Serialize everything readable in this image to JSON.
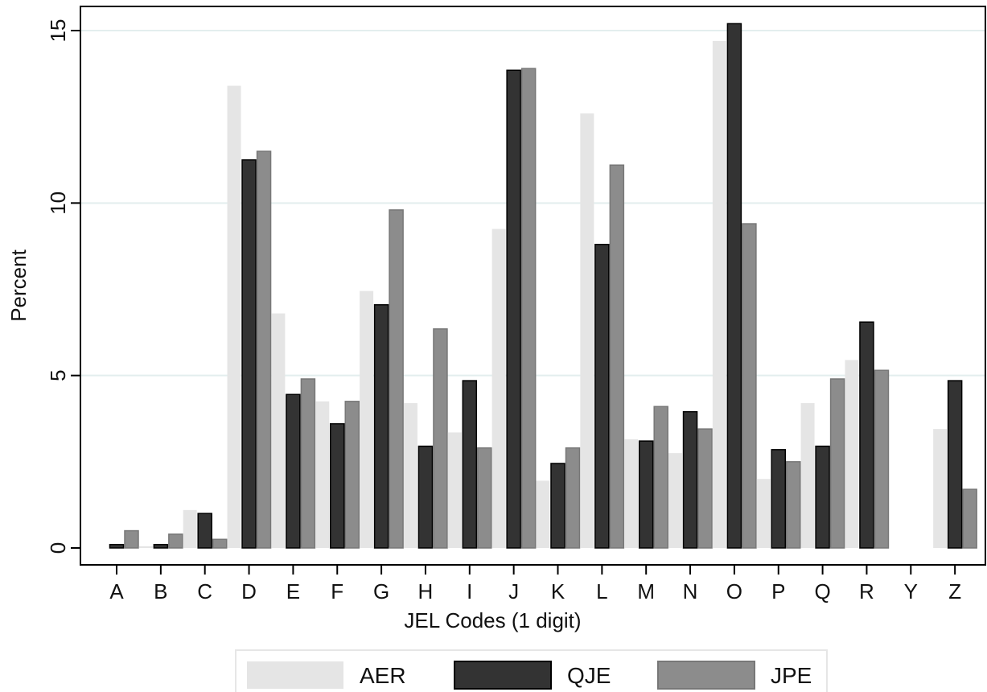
{
  "chart_data": {
    "type": "bar",
    "xlabel": "JEL Codes (1 digit)",
    "ylabel": "Percent",
    "ylim": [
      0,
      15.8
    ],
    "yticks": [
      0,
      5,
      10,
      15
    ],
    "grid": true,
    "legend_position": "bottom",
    "categories": [
      "A",
      "B",
      "C",
      "D",
      "E",
      "F",
      "G",
      "H",
      "I",
      "J",
      "K",
      "L",
      "M",
      "N",
      "O",
      "P",
      "Q",
      "R",
      "Y",
      "Z"
    ],
    "series": [
      {
        "name": "AER",
        "color": "#e5e5e5",
        "stroke": "none",
        "values": [
          0.0,
          0.05,
          1.1,
          13.4,
          6.8,
          4.25,
          7.45,
          4.2,
          3.35,
          9.25,
          1.95,
          12.6,
          3.15,
          2.75,
          14.7,
          2.0,
          4.2,
          5.45,
          0.0,
          3.45
        ]
      },
      {
        "name": "QJE",
        "color": "#333333",
        "stroke": "#000000",
        "values": [
          0.1,
          0.1,
          1.0,
          11.25,
          4.45,
          3.6,
          7.05,
          2.95,
          4.85,
          13.85,
          2.45,
          8.8,
          3.1,
          3.95,
          15.2,
          2.85,
          2.95,
          6.55,
          0.0,
          4.85
        ]
      },
      {
        "name": "JPE",
        "color": "#8c8c8c",
        "stroke": "#777777",
        "values": [
          0.5,
          0.4,
          0.25,
          11.5,
          4.9,
          4.25,
          9.8,
          6.35,
          2.9,
          13.9,
          2.9,
          11.1,
          4.1,
          3.45,
          9.4,
          2.5,
          4.9,
          5.15,
          0.0,
          1.7
        ]
      }
    ]
  }
}
